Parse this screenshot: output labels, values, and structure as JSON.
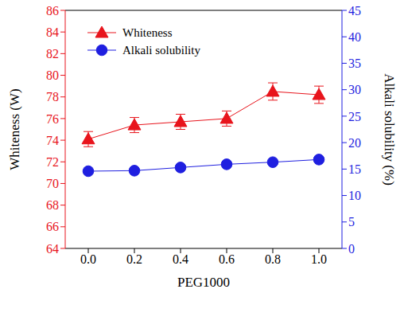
{
  "chart_data": {
    "type": "line",
    "x_label": "PEG1000",
    "y_label": "Whiteness (W)",
    "y2_label": "Alkali solubility (%)",
    "x": [
      0,
      0.2,
      0.4,
      0.6,
      0.8,
      1.0
    ],
    "xlim": [
      -0.1,
      1.1
    ],
    "xticks": [
      {
        "value": 0,
        "label": "0.0"
      },
      {
        "value": 0.2,
        "label": "0.2"
      },
      {
        "value": 0.4,
        "label": "0.4"
      },
      {
        "value": 0.6,
        "label": "0.6"
      },
      {
        "value": 0.8,
        "label": "0.8"
      },
      {
        "value": 1.0,
        "label": "1.0"
      }
    ],
    "ylim": [
      64,
      86
    ],
    "yticks": [
      64,
      66,
      68,
      70,
      72,
      74,
      76,
      78,
      80,
      82,
      84,
      86
    ],
    "y2lim": [
      0,
      45
    ],
    "y2ticks": [
      0,
      5,
      10,
      15,
      20,
      25,
      30,
      35,
      40,
      45
    ],
    "grid": false,
    "legend": "upper left",
    "series": [
      {
        "name": "Whiteness",
        "color": "#e8141c",
        "marker": "triangle",
        "axis": "y",
        "values": [
          74.1,
          75.4,
          75.7,
          76.0,
          78.5,
          78.2
        ],
        "errors": [
          0.7,
          0.7,
          0.7,
          0.7,
          0.8,
          0.8
        ]
      },
      {
        "name": "Alkali solubility",
        "color": "#1f1fe0",
        "marker": "circle",
        "axis": "y2",
        "values": [
          14.6,
          14.7,
          15.3,
          15.9,
          16.3,
          16.8
        ]
      }
    ]
  }
}
